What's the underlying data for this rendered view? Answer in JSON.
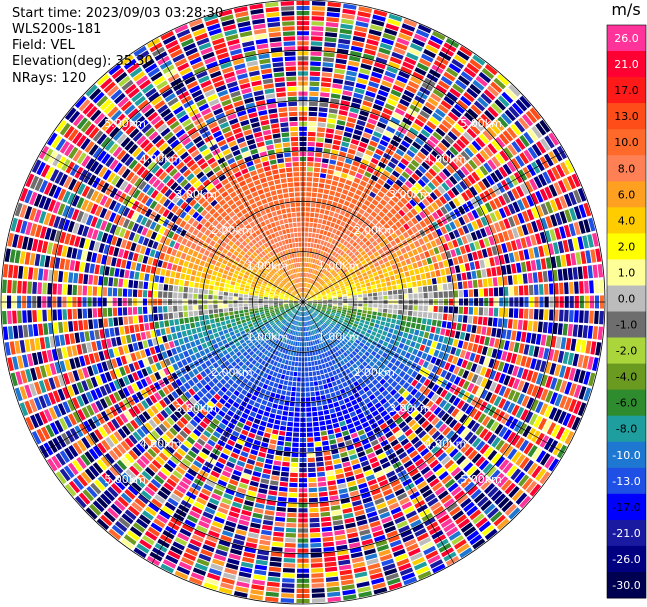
{
  "header": {
    "start_time": "Start time: 2023/09/03 03:28:30",
    "instrument": "WLS200s-181",
    "field": "Field: VEL",
    "elevation": "Elevation(deg): 35.30",
    "nrays": "NRays: 120"
  },
  "colorbar": {
    "unit": "m/s",
    "ticks": [
      "26.0",
      "21.0",
      "17.0",
      "13.0",
      "10.0",
      "8.0",
      "6.0",
      "4.0",
      "2.0",
      "1.0",
      "0.0",
      "-1.0",
      "-2.0",
      "-4.0",
      "-6.0",
      "-8.0",
      "-10.0",
      "-13.0",
      "-17.0",
      "-21.0",
      "-26.0",
      "-30.0"
    ],
    "bins": [
      {
        "label": "26.0",
        "color": "#ff3399"
      },
      {
        "label": "21.0",
        "color": "#ff0033"
      },
      {
        "label": "17.0",
        "color": "#ff1a1a"
      },
      {
        "label": "13.0",
        "color": "#ff4d1a"
      },
      {
        "label": "10.0",
        "color": "#ff6a2a"
      },
      {
        "label": "8.0",
        "color": "#ff8055"
      },
      {
        "label": "6.0",
        "color": "#ffa020"
      },
      {
        "label": "4.0",
        "color": "#ffcc00"
      },
      {
        "label": "2.0",
        "color": "#ffff00"
      },
      {
        "label": "1.0",
        "color": "#ffff99"
      },
      {
        "label": "0.0",
        "color": "#bcbcbc"
      },
      {
        "label": "-1.0",
        "color": "#6e6e6e"
      },
      {
        "label": "-2.0",
        "color": "#aad63c"
      },
      {
        "label": "-4.0",
        "color": "#6a9a20"
      },
      {
        "label": "-6.0",
        "color": "#2e8b2e"
      },
      {
        "label": "-8.0",
        "color": "#1e9e9e"
      },
      {
        "label": "-10.0",
        "color": "#1e78d2"
      },
      {
        "label": "-13.0",
        "color": "#1e50e6"
      },
      {
        "label": "-17.0",
        "color": "#0000ff"
      },
      {
        "label": "-21.0",
        "color": "#1a1aa0"
      },
      {
        "label": "-26.0",
        "color": "#000080"
      },
      {
        "label": "-30.0",
        "color": "#000050"
      }
    ]
  },
  "chart_data": {
    "type": "heatmap",
    "projection": "polar-ppi",
    "field": "VEL",
    "units": "m/s",
    "nrays": 120,
    "max_range_km": 6.0,
    "range_rings_km": [
      1.0,
      2.0,
      3.0,
      4.0,
      5.0
    ],
    "ring_labels": [
      "1.00km",
      "2.00km",
      "3.00km",
      "4.00km",
      "5.00km"
    ],
    "grid": true,
    "velocity_pattern": {
      "near_field_km": 2.8,
      "north_sector_velocity": 12.0,
      "south_sector_velocity": -14.0,
      "far_field": "noise"
    }
  }
}
